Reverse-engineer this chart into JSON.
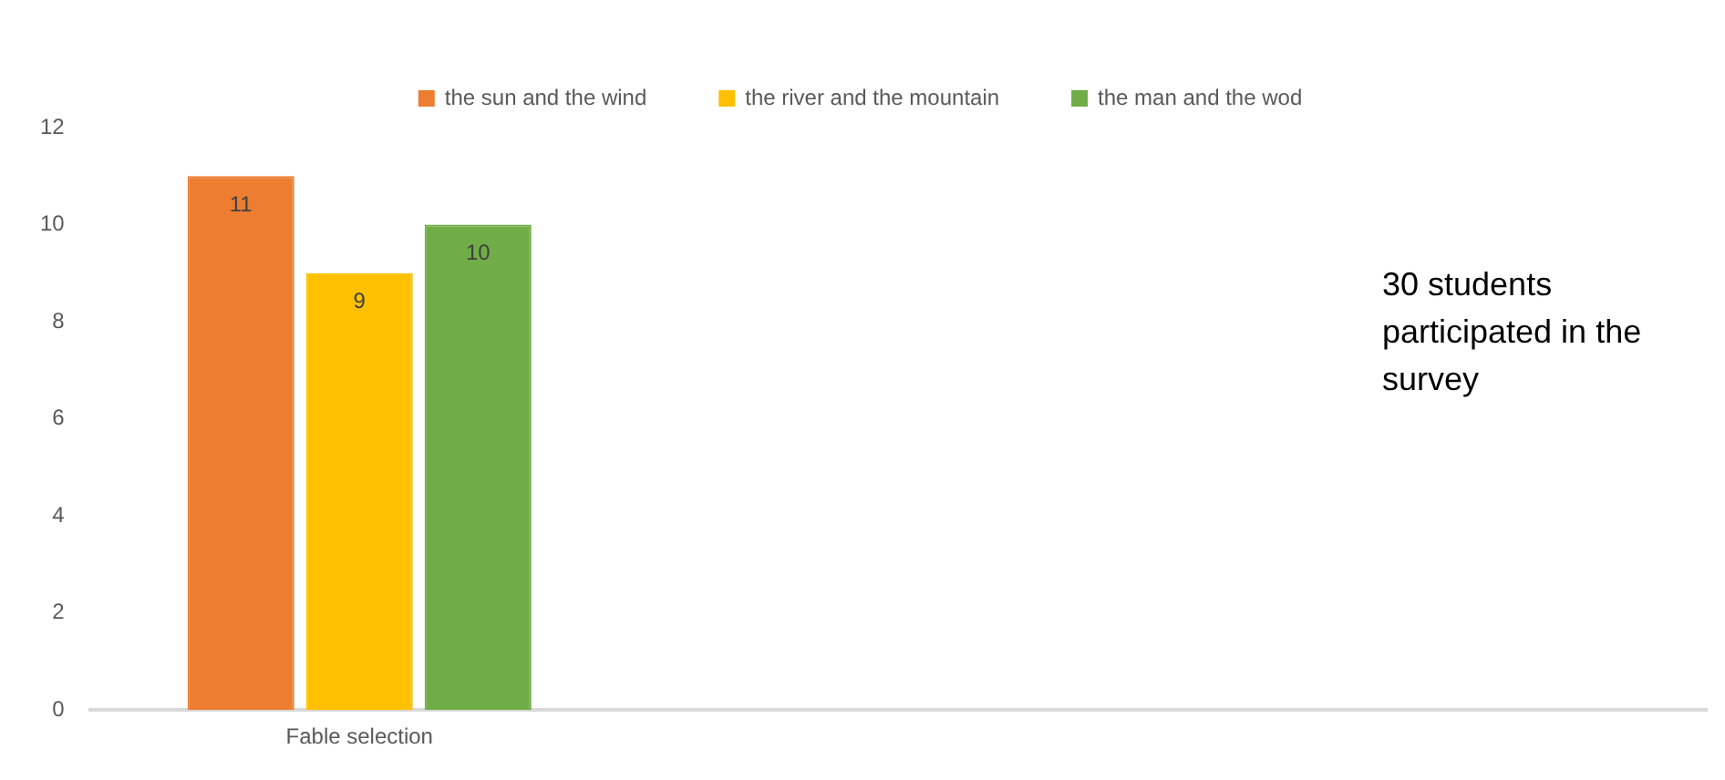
{
  "chart_data": {
    "type": "bar",
    "categories": [
      "Fable selection",
      null,
      null
    ],
    "series": [
      {
        "name": "the sun and the wind",
        "color": "#ed7d31",
        "values": [
          11,
          null,
          null
        ]
      },
      {
        "name": "the river and the mountain",
        "color": "#ffc000",
        "values": [
          9,
          null,
          null
        ]
      },
      {
        "name": "the man and the wod",
        "color": "#70ad47",
        "values": [
          10,
          null,
          null
        ]
      }
    ],
    "ylim": [
      0,
      12
    ],
    "yticks": [
      0,
      2,
      4,
      6,
      8,
      10,
      12
    ],
    "grid": false,
    "legend": "top",
    "data_labels": true,
    "annotations": [
      "30 students participated in the survey"
    ]
  }
}
